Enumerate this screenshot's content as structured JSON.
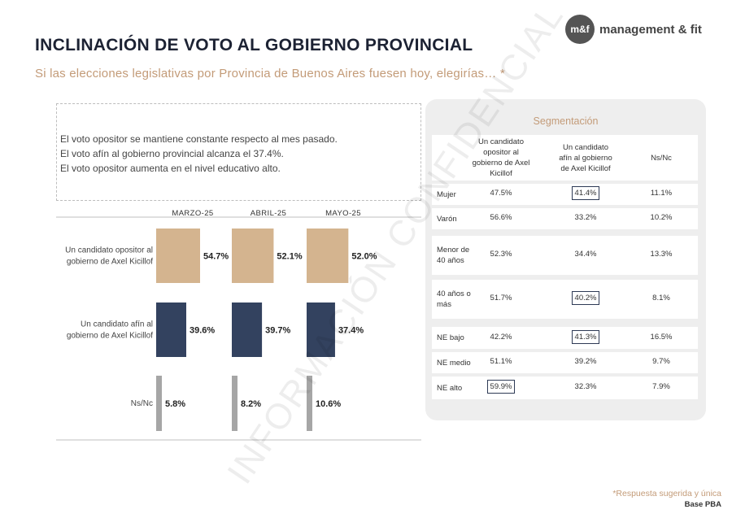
{
  "header": {
    "title": "INCLINACIÓN DE VOTO AL GOBIERNO PROVINCIAL",
    "subtitle": "Si las elecciones legislativas por Provincia de Buenos Aires fuesen hoy, elegirías… *",
    "logo_mark": "m&f",
    "logo_text": "management & fit"
  },
  "watermark": "INFORMACIÓN CONFIDENCIAL",
  "notes": [
    "El voto opositor se mantiene constante respecto al mes pasado.",
    "El voto afín al gobierno provincial alcanza el 37.4%.",
    "El voto opositor aumenta en el nivel educativo alto."
  ],
  "colors": {
    "opositor": "#d4b48f",
    "afin": "#33425f",
    "nsnc": "#a6a6a6",
    "accent": "#c39b78",
    "title": "#1c2233"
  },
  "chart_data": {
    "type": "bar",
    "orientation": "horizontal",
    "periods": [
      "MARZO-25",
      "ABRIL-25",
      "MAYO-25"
    ],
    "categories": [
      "Un candidato opositor al gobierno de Axel Kicillof",
      "Un candidato afín al gobierno de Axel Kicillof",
      "Ns/Nc"
    ],
    "category_lines": [
      [
        "Un candidato opositor al",
        "gobierno de Axel Kicillof"
      ],
      [
        "Un candidato afín al",
        "gobierno de Axel Kicillof"
      ],
      [
        "Ns/Nc"
      ]
    ],
    "values": [
      [
        54.7,
        52.1,
        52.0
      ],
      [
        39.6,
        39.7,
        37.4
      ],
      [
        5.8,
        8.2,
        10.6
      ]
    ],
    "value_labels": [
      [
        "54.7%",
        "52.1%",
        "52.0%"
      ],
      [
        "39.6%",
        "39.7%",
        "37.4%"
      ],
      [
        "5.8%",
        "8.2%",
        "10.6%"
      ]
    ]
  },
  "segmentation": {
    "title": "Segmentación",
    "columns": [
      [
        "Un candidato",
        "opositor al",
        "gobierno de Axel",
        "Kicillof"
      ],
      [
        "Un candidato",
        "afín al gobierno",
        "de Axel Kicillof"
      ],
      [
        "Ns/Nc"
      ]
    ],
    "rows": [
      {
        "label": [
          "Mujer"
        ],
        "values": [
          "47.5%",
          "41.4%",
          "11.1%"
        ],
        "boxed": 1
      },
      {
        "label": [
          "Varón"
        ],
        "values": [
          "56.6%",
          "33.2%",
          "10.2%"
        ],
        "boxed": -1
      },
      {
        "label": [
          "Menor de",
          "40 años"
        ],
        "values": [
          "52.3%",
          "34.4%",
          "13.3%"
        ],
        "boxed": -1
      },
      {
        "label": [
          "40 años o",
          "más"
        ],
        "values": [
          "51.7%",
          "40.2%",
          "8.1%"
        ],
        "boxed": 1
      },
      {
        "label": [
          "NE bajo"
        ],
        "values": [
          "42.2%",
          "41.3%",
          "16.5%"
        ],
        "boxed": 1
      },
      {
        "label": [
          "NE medio"
        ],
        "values": [
          "51.1%",
          "39.2%",
          "9.7%"
        ],
        "boxed": -1
      },
      {
        "label": [
          "NE alto"
        ],
        "values": [
          "59.9%",
          "32.3%",
          "7.9%"
        ],
        "boxed": 0
      }
    ]
  },
  "footer": {
    "note": "*Respuesta sugerida y única",
    "base": "Base PBA"
  }
}
